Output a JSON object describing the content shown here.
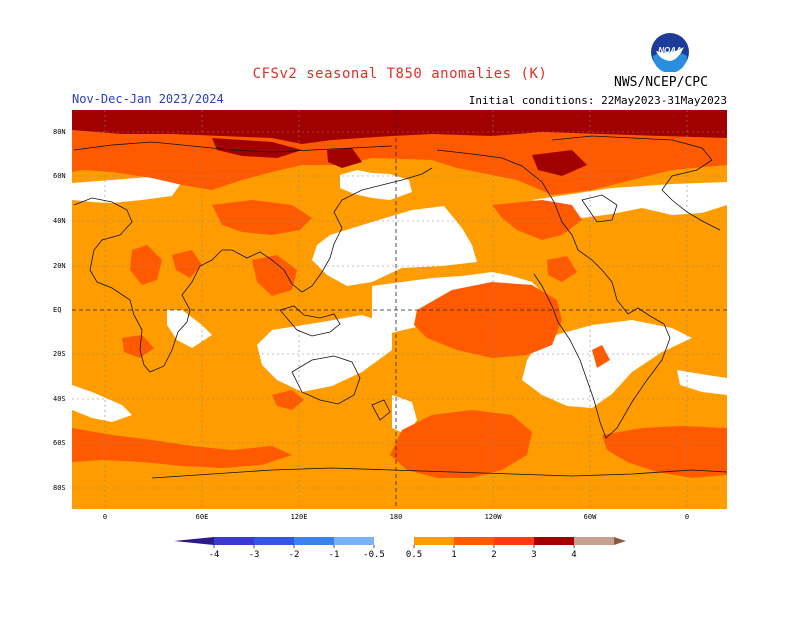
{
  "title": "CFSv2 seasonal T850 anomalies (K)",
  "season": "Nov-Dec-Jan 2023/2024",
  "initial_conditions": "Initial conditions: 22May2023-31May2023",
  "agency": "NWS/NCEP/CPC",
  "logo_text": "NOAA",
  "colors": {
    "title": "#e0302a",
    "season": "#2a3fc0",
    "bin_0_5_1": "#ff9d00",
    "bin_1_2": "#ff5a00",
    "bin_2_3": "#ff3a14",
    "bin_3_4": "#a00000",
    "bin_4p": "#c8a090",
    "cold_neg4": "#3a3ad0",
    "cold_neg3": "#3355e0",
    "cold_neg2": "#3d82ea",
    "cold_neg1": "#78b4f4",
    "neutral": "#ffffff"
  },
  "lat_labels": [
    "80N",
    "60N",
    "40N",
    "20N",
    "EQ",
    "20S",
    "40S",
    "60S",
    "80S"
  ],
  "lon_labels": [
    "0",
    "60E",
    "120E",
    "180",
    "120W",
    "60W",
    "0"
  ],
  "colorbar": {
    "ticks": [
      "-4",
      "-3",
      "-2",
      "-1",
      "-0.5",
      "0.5",
      "1",
      "2",
      "3",
      "4"
    ]
  }
}
